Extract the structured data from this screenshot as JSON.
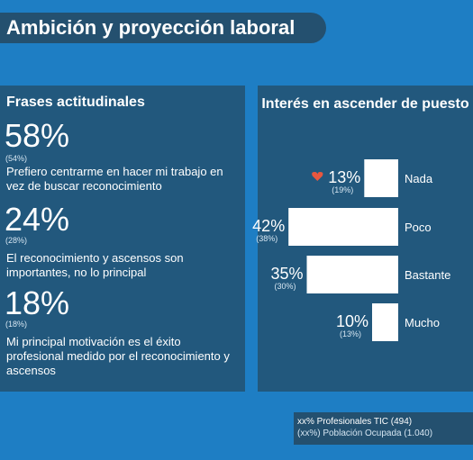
{
  "header": {
    "title": "Ambición y proyección laboral"
  },
  "left_panel": {
    "heading": "Frases actitudinales",
    "statements": [
      {
        "percent": "58%",
        "sub_percent": "(54%)",
        "text": "Prefiero centrarme en hacer mi trabajo en vez de buscar reconocimiento"
      },
      {
        "percent": "24%",
        "sub_percent": "(28%)",
        "text": "El reconocimiento y ascensos son importantes, no lo principal"
      },
      {
        "percent": "18%",
        "sub_percent": "(18%)",
        "text": "Mi principal motivación es el éxito profesional medido por el reconocimiento y ascensos"
      }
    ]
  },
  "right_panel": {
    "heading": "Interés en ascender de puesto"
  },
  "chart_data": {
    "type": "bar",
    "orientation": "horizontal",
    "title": "Interés en ascender de puesto",
    "categories": [
      "Nada",
      "Poco",
      "Bastante",
      "Mucho"
    ],
    "series": [
      {
        "name": "Profesionales TIC (494)",
        "values": [
          13,
          42,
          35,
          10
        ]
      },
      {
        "name": "Población Ocupada (1.040)",
        "values": [
          19,
          38,
          30,
          13
        ]
      }
    ],
    "value_labels": [
      "13%",
      "42%",
      "35%",
      "10%"
    ],
    "secondary_labels": [
      "(19%)",
      "(38%)",
      "(30%)",
      "(13%)"
    ],
    "highlight": {
      "category": "Nada",
      "marker": "heart-icon",
      "color": "#e8573f"
    },
    "bar_color": "#ffffff",
    "grid": false
  },
  "legend": {
    "line1": "xx%  Profesionales TIC (494)",
    "line2": "(xx%) Población Ocupada (1.040)"
  }
}
